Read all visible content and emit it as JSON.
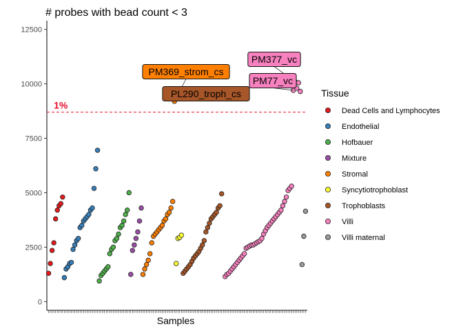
{
  "chart_data": {
    "type": "scatter",
    "title": "# probes with bead count < 3",
    "xlabel": "Samples",
    "ylabel": "",
    "ylim": [
      -400,
      12900
    ],
    "yticks": [
      0,
      2500,
      5000,
      7500,
      10000,
      12500
    ],
    "ytick_labels": [
      "0",
      "2500",
      "5000",
      "7500",
      "10000",
      "12500"
    ],
    "grid": false,
    "threshold": {
      "value": 8700,
      "label": "1%",
      "color": "#e8112d"
    },
    "legend": {
      "title": "Tissue",
      "placement": "right",
      "entries": [
        {
          "name": "Dead Cells and Lymphocytes",
          "color": "#e41a1c"
        },
        {
          "name": "Endothelial",
          "color": "#377eb8"
        },
        {
          "name": "Hofbauer",
          "color": "#4daf4a"
        },
        {
          "name": "Mixture",
          "color": "#984ea3"
        },
        {
          "name": "Stromal",
          "color": "#ff7f00"
        },
        {
          "name": "Syncytiotrophoblast",
          "color": "#ffff33"
        },
        {
          "name": "Trophoblasts",
          "color": "#a65628"
        },
        {
          "name": "Villi",
          "color": "#f781bf"
        },
        {
          "name": "Villi maternal",
          "color": "#999999"
        }
      ]
    },
    "series": [
      {
        "name": "Dead Cells and Lymphocytes",
        "x": [
          1,
          2,
          3,
          4,
          5,
          6,
          7,
          8,
          9
        ],
        "y": [
          1300,
          1750,
          2350,
          2700,
          3800,
          4200,
          4400,
          4500,
          4800
        ]
      },
      {
        "name": "Endothelial",
        "x": [
          10,
          11,
          12,
          13,
          14,
          15,
          16,
          17,
          18,
          19,
          20,
          21,
          22,
          23,
          24,
          25,
          26,
          27,
          28,
          29
        ],
        "y": [
          1100,
          1500,
          1600,
          1750,
          1800,
          2400,
          2600,
          2800,
          2900,
          3400,
          3500,
          3700,
          3800,
          3900,
          4000,
          4200,
          4300,
          5200,
          6100,
          6950
        ]
      },
      {
        "name": "Hofbauer",
        "x": [
          30,
          31,
          32,
          33,
          34,
          35,
          36,
          37,
          38,
          39,
          40,
          41,
          42,
          43,
          44,
          45,
          46,
          47
        ],
        "y": [
          950,
          1200,
          1300,
          1400,
          1500,
          1600,
          2200,
          2400,
          2500,
          2800,
          2900,
          3100,
          3400,
          3500,
          3700,
          4000,
          4200,
          5000
        ]
      },
      {
        "name": "Mixture",
        "x": [
          48,
          49,
          50,
          51,
          52,
          53,
          54
        ],
        "y": [
          1250,
          2350,
          2600,
          2900,
          3200,
          3700,
          4300
        ]
      },
      {
        "name": "Stromal",
        "x": [
          55,
          56,
          57,
          58,
          59,
          60,
          61,
          62,
          63,
          64,
          65,
          66,
          67,
          68,
          69,
          70,
          71,
          72,
          73
        ],
        "y": [
          1250,
          1500,
          1700,
          1900,
          2200,
          2700,
          3000,
          3100,
          3200,
          3300,
          3400,
          3500,
          3700,
          3800,
          4000,
          4100,
          4300,
          4600,
          9200
        ]
      },
      {
        "name": "Syncytiotrophoblast",
        "x": [
          74,
          75,
          76,
          77
        ],
        "y": [
          1750,
          2900,
          2950,
          3050
        ]
      },
      {
        "name": "Trophoblasts",
        "x": [
          78,
          79,
          80,
          81,
          82,
          83,
          84,
          85,
          86,
          87,
          88,
          89,
          90,
          91,
          92,
          93,
          94,
          95,
          96,
          97,
          98,
          99,
          100,
          101
        ],
        "y": [
          1300,
          1400,
          1500,
          1600,
          1700,
          1850,
          2000,
          2100,
          2200,
          2300,
          2450,
          2600,
          2800,
          3200,
          3400,
          3600,
          3800,
          3900,
          4000,
          4100,
          4300,
          4400,
          4950,
          9400
        ]
      },
      {
        "name": "Villi",
        "x": [
          102,
          103,
          104,
          105,
          106,
          107,
          108,
          109,
          110,
          111,
          112,
          113,
          114,
          115,
          116,
          117,
          118,
          119,
          120,
          121,
          122,
          123,
          124,
          125,
          126,
          127,
          128,
          129,
          130,
          131,
          132,
          133,
          134,
          135,
          136,
          137,
          138,
          139,
          140,
          141,
          142,
          143,
          144,
          145
        ],
        "y": [
          1150,
          1250,
          1300,
          1400,
          1500,
          1600,
          1700,
          1800,
          1900,
          2000,
          2100,
          2200,
          2450,
          2500,
          2550,
          2600,
          2600,
          2650,
          2700,
          2750,
          2800,
          2900,
          3100,
          3250,
          3400,
          3500,
          3600,
          3700,
          3800,
          3900,
          4000,
          4100,
          4200,
          4400,
          4600,
          4800,
          5100,
          5200,
          5300,
          9700,
          10100,
          9800,
          10050,
          9650
        ]
      },
      {
        "name": "Villi maternal",
        "x": [
          146,
          147,
          148
        ],
        "y": [
          1700,
          3000,
          4150
        ]
      }
    ],
    "annotations": [
      {
        "label": "PM369_strom_cs",
        "x": 73,
        "y": 9200,
        "color": "#ff7f00"
      },
      {
        "label": "PL290_troph_cs",
        "x": 101,
        "y": 9400,
        "color": "#a65628"
      },
      {
        "label": "PM377_vc",
        "x": 142,
        "y": 10100,
        "color": "#f781bf"
      },
      {
        "label": "PM77_vc",
        "x": 141,
        "y": 9700,
        "color": "#f781bf"
      }
    ]
  }
}
